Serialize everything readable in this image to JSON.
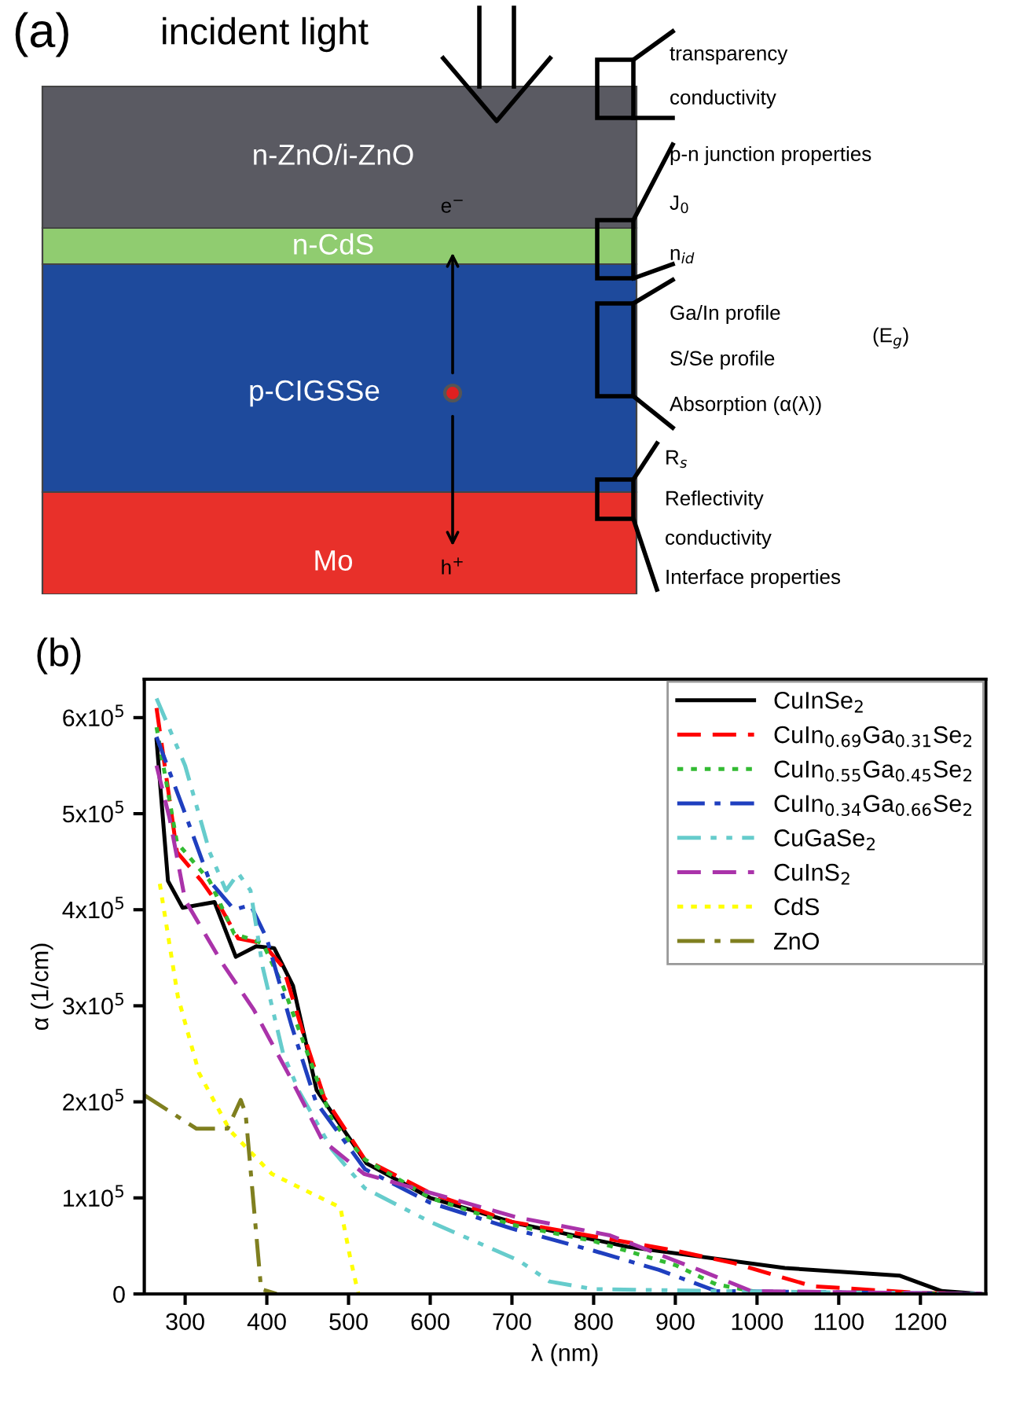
{
  "chart_data": [
    {
      "type": "other",
      "title": "(a)",
      "annotations": [
        "incident light",
        "n-ZnO/i-ZnO",
        "n-CdS",
        "p-CIGSSe",
        "Mo",
        "e$^{−}$",
        "h$^{+}$",
        "transparency",
        "conductivity",
        "p-n junction properties",
        "J$_{0}$",
        "n$_{id}$",
        "Ga/In profile",
        "S/Se profile",
        "(E$_{g}$)",
        "Absorption (α(λ))",
        "R$_{s}$",
        "Reflectivity",
        "conductivity",
        "Interface properties"
      ]
    },
    {
      "type": "line",
      "title": "(b)",
      "xlabel": "λ (nm)",
      "ylabel": "α (1/cm)",
      "xlim": [
        250,
        1280
      ],
      "ylim": [
        0,
        640000
      ],
      "xticks": [
        300,
        400,
        500,
        600,
        700,
        800,
        900,
        1000,
        1100,
        1200
      ],
      "yticks": [
        0,
        {
          "value": 100000,
          "label": "1x10$^{5}$"
        },
        {
          "value": 200000,
          "label": "2x10$^{5}$"
        },
        {
          "value": 300000,
          "label": "3x10$^{5}$"
        },
        {
          "value": 400000,
          "label": "4x10$^{5}$"
        },
        {
          "value": 500000,
          "label": "5x10$^{5}$"
        },
        {
          "value": 600000,
          "label": "6x10$^{5}$"
        }
      ],
      "legend": "top right",
      "grid": false,
      "series": [
        {
          "name": "CuInSe$_{2}$",
          "color": "#000000",
          "line_style": "solid",
          "x": [
            265,
            279,
            297,
            336,
            362,
            387,
            409,
            432,
            461,
            522,
            600,
            708,
            842,
            1034,
            1175,
            1226,
            1275
          ],
          "values": [
            577000,
            430000,
            402000,
            408000,
            351000,
            362000,
            360000,
            321000,
            212000,
            136000,
            100000,
            73000,
            49000,
            27000,
            19000,
            3000,
            0
          ]
        },
        {
          "name": "CuIn$_{0.69}$Ga$_{0.31}$Se$_{2}$",
          "color": "#ff0000",
          "line_style": "dashed",
          "x": [
            265,
            290,
            320,
            345,
            365,
            395,
            420,
            445,
            470,
            520,
            600,
            700,
            800,
            900,
            972,
            1068,
            1200,
            1275
          ],
          "values": [
            610000,
            460000,
            430000,
            400000,
            370000,
            365000,
            340000,
            270000,
            205000,
            140000,
            105000,
            75000,
            60000,
            45000,
            32000,
            8000,
            1000,
            0
          ]
        },
        {
          "name": "CuIn$_{0.55}$Ga$_{0.45}$Se$_{2}$",
          "color": "#33bb33",
          "line_style": "dotted",
          "x": [
            265,
            290,
            330,
            360,
            395,
            420,
            450,
            480,
            520,
            600,
            700,
            800,
            900,
            950,
            1000,
            1275
          ],
          "values": [
            590000,
            470000,
            430000,
            375000,
            365000,
            320000,
            250000,
            180000,
            140000,
            100000,
            72000,
            55000,
            30000,
            10000,
            2000,
            0
          ]
        },
        {
          "name": "CuIn$_{0.34}$Ga$_{0.66}$Se$_{2}$",
          "color": "#1f3fbf",
          "line_style": "dashdot",
          "x": [
            265,
            300,
            330,
            360,
            380,
            400,
            430,
            460,
            520,
            600,
            700,
            800,
            880,
            950,
            1275
          ],
          "values": [
            580000,
            500000,
            430000,
            400000,
            405000,
            370000,
            280000,
            200000,
            130000,
            95000,
            68000,
            45000,
            25000,
            3000,
            0
          ]
        },
        {
          "name": "CuGaSe$_{2}$",
          "color": "#66cccc",
          "line_style": "dashdotdot",
          "x": [
            265,
            300,
            330,
            350,
            365,
            380,
            395,
            420,
            440,
            480,
            520,
            600,
            708,
            746,
            800,
            950,
            1275
          ],
          "values": [
            620000,
            550000,
            460000,
            420000,
            438000,
            420000,
            340000,
            250000,
            210000,
            150000,
            110000,
            75000,
            35000,
            13000,
            5000,
            3000,
            0
          ]
        },
        {
          "name": "CuInS$_{2}$",
          "color": "#aa33aa",
          "line_style": "dashed",
          "x": [
            265,
            281,
            300,
            345,
            384,
            429,
            468,
            519,
            705,
            820,
            929,
            993,
            1275
          ],
          "values": [
            550000,
            495000,
            410000,
            345000,
            296000,
            225000,
            160000,
            125000,
            80000,
            61000,
            25000,
            3000,
            0
          ]
        },
        {
          "name": "CdS",
          "color": "#ffff00",
          "line_style": "dotted",
          "x": [
            269,
            291,
            317,
            355,
            406,
            490,
            502,
            512
          ],
          "values": [
            427000,
            310000,
            230000,
            170000,
            125000,
            90000,
            38000,
            0
          ]
        },
        {
          "name": "ZnO",
          "color": "#7f7f1f",
          "line_style": "dashdot",
          "x": [
            250,
            314,
            352,
            368,
            374,
            393,
            412
          ],
          "values": [
            207000,
            172000,
            172000,
            202000,
            188000,
            5000,
            0
          ]
        }
      ]
    }
  ]
}
